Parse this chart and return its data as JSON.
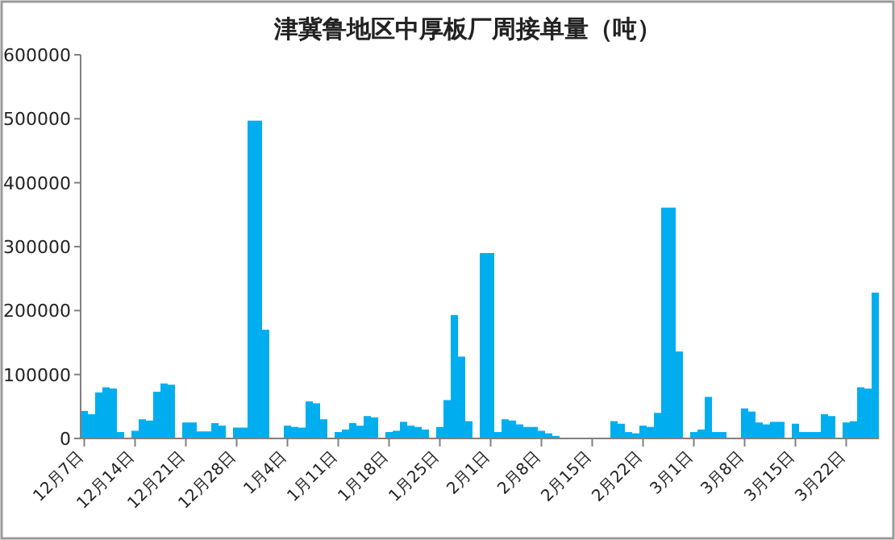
{
  "chart_data": {
    "type": "bar",
    "title": "津冀鲁地区中厚板厂周接单量（吨）",
    "categories": [
      "12月7日",
      null,
      null,
      null,
      null,
      null,
      null,
      "12月14日",
      null,
      null,
      null,
      null,
      null,
      null,
      "12月21日",
      null,
      null,
      null,
      null,
      null,
      null,
      "12月28日",
      null,
      null,
      null,
      null,
      null,
      null,
      "1月4日",
      null,
      null,
      null,
      null,
      null,
      null,
      "1月11日",
      null,
      null,
      null,
      null,
      null,
      null,
      "1月18日",
      null,
      null,
      null,
      null,
      null,
      null,
      "1月25日",
      null,
      null,
      null,
      null,
      null,
      null,
      "2月1日",
      null,
      null,
      null,
      null,
      null,
      null,
      "2月8日",
      null,
      null,
      null,
      null,
      null,
      null,
      "2月15日",
      null,
      null,
      null,
      null,
      null,
      null,
      "2月22日",
      null,
      null,
      null,
      null,
      null,
      null,
      "3月1日",
      null,
      null,
      null,
      null,
      null,
      null,
      "3月8日",
      null,
      null,
      null,
      null,
      null,
      null,
      "3月15日",
      null,
      null,
      null,
      null,
      null,
      null,
      "3月22日",
      null,
      null,
      null,
      null
    ],
    "values": [
      43000,
      38000,
      72000,
      80000,
      78000,
      10000,
      null,
      12000,
      30000,
      28000,
      73000,
      86000,
      84000,
      null,
      25000,
      25000,
      11000,
      11000,
      24000,
      20000,
      null,
      17000,
      17000,
      497000,
      497000,
      170000,
      null,
      null,
      20000,
      18000,
      17000,
      58000,
      55000,
      30000,
      null,
      10000,
      14000,
      24000,
      20000,
      35000,
      33000,
      null,
      10000,
      12000,
      26000,
      20000,
      18000,
      14000,
      null,
      18000,
      60000,
      193000,
      128000,
      27000,
      null,
      290000,
      290000,
      10000,
      30000,
      28000,
      22000,
      18000,
      18000,
      12000,
      8000,
      4000,
      null,
      null,
      null,
      null,
      null,
      null,
      null,
      27000,
      23000,
      10000,
      8000,
      20000,
      18000,
      40000,
      361000,
      361000,
      136000,
      null,
      10000,
      14000,
      65000,
      10000,
      10000,
      null,
      null,
      47000,
      42000,
      25000,
      22000,
      26000,
      26000,
      null,
      23000,
      10000,
      10000,
      10000,
      38000,
      35000,
      null,
      25000,
      27000,
      80000,
      78000,
      228000
    ],
    "color": "#00aeef",
    "ylim": [
      0,
      600000
    ],
    "yticks": [
      0,
      100000,
      200000,
      300000,
      400000,
      500000,
      600000
    ]
  }
}
